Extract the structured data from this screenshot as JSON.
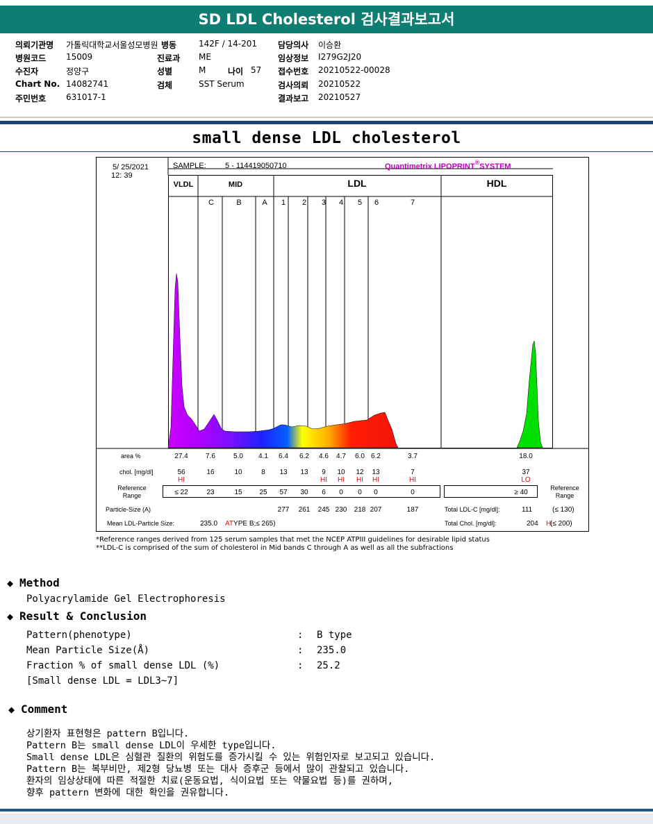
{
  "report_title": "SD LDL Cholesterol 검사결과보고서",
  "patient": {
    "institution_label": "의뢰기관명",
    "institution": "가톨릭대학교서울성모병원",
    "ward_label": "병동",
    "ward": "142F / 14-201",
    "doctor_label": "담당의사",
    "doctor": "이승환",
    "hospital_code_label": "병원코드",
    "hospital_code": "15009",
    "dept_label": "진료과",
    "dept": "ME",
    "clinical_label": "임상정보",
    "clinical": "I279G2J20",
    "patient_label": "수진자",
    "patient_name": "정양구",
    "sex_label": "성별",
    "sex": "M",
    "age_label": "나이",
    "age": "57",
    "reception_label": "접수번호",
    "reception": "20210522-00028",
    "chart_label": "Chart No.",
    "chart_no": "14082741",
    "specimen_label": "검체",
    "specimen": "SST Serum",
    "request_label": "검사의뢰",
    "request_date": "20210522",
    "id_label": "주민번호",
    "id_no": "631017-1",
    "report_label": "결과보고",
    "report_date": "20210527"
  },
  "section_title": "small dense LDL cholesterol",
  "chart_data": {
    "type": "area",
    "date": "5/ 25/2021",
    "time": "12: 39",
    "sample_label": "SAMPLE:",
    "sample_id": "5 - 114419050710",
    "brand": "Quantimetrix LIPOPRINT",
    "brand_suffix": "SYSTEM",
    "brand_mark": "®",
    "groups": [
      "VLDL",
      "MID",
      "LDL",
      "HDL"
    ],
    "bands": [
      "C",
      "B",
      "A",
      "1",
      "2",
      "3",
      "4",
      "5",
      "6",
      "7"
    ],
    "area_label": "area %",
    "area": [
      "27.4",
      "7.6",
      "5.0",
      "4.1",
      "6.4",
      "6.2",
      "4.6",
      "4.7",
      "6.0",
      "6.2",
      "3.7",
      "18.0"
    ],
    "chol_label": "chol. [mg/dl]",
    "chol": [
      "56",
      "16",
      "10",
      "8",
      "13",
      "13",
      "9",
      "10",
      "12",
      "13",
      "7",
      "37"
    ],
    "flags": [
      "HI",
      "",
      "",
      "",
      "",
      "",
      "HI",
      "HI",
      "HI",
      "HI",
      "HI",
      "LO"
    ],
    "ref_label": [
      "Reference",
      "Range"
    ],
    "ref_right_label": [
      "Reference",
      "Range"
    ],
    "ref": [
      "≤ 22",
      "23",
      "15",
      "25",
      "57",
      "30",
      "6",
      "0",
      "0",
      "0",
      "0",
      "≥ 40"
    ],
    "size_label": "Particle-Size (A)",
    "sizes": [
      "277",
      "261",
      "245",
      "230",
      "218",
      "207",
      "187"
    ],
    "mean_label": "Mean LDL-Particle Size:",
    "mean_value": "235.0",
    "type_prefix": "AT",
    "type_value": "YPE B",
    "type_ref": ";≤ 265)",
    "total_ldl_label": "Total LDL-C [mg/dl]:",
    "total_ldl": "111",
    "total_ldl_ref": "(≤ 130)",
    "total_chol_label": "Total Chol. [mg/dl]:",
    "total_chol": "204",
    "total_chol_flag": "H",
    "total_chol_ref": "(≤ 200)"
  },
  "footnotes": [
    "*Reference ranges derived from 125 serum samples that met the NCEP ATPIII guidelines for desirable lipid status",
    "**LDL-C is comprised of the sum of cholesterol in Mid bands C through A as well as all the subfractions"
  ],
  "method": {
    "heading": "Method",
    "text": "Polyacrylamide Gel Electrophoresis"
  },
  "result": {
    "heading": "Result & Conclusion",
    "rows": [
      {
        "label": "Pattern(phenotype)",
        "value": "B type"
      },
      {
        "label": "Mean Particle Size(Å)",
        "value": "235.0"
      },
      {
        "label": "Fraction % of small dense LDL (%)",
        "value": "25.2"
      }
    ],
    "note": "[Small dense LDL = LDL3~7]"
  },
  "comment": {
    "heading": "Comment",
    "lines": [
      "상기환자 표현형은 pattern B입니다.",
      "Pattern B는 small dense LDL이 우세한 type입니다.",
      "Small dense LDL은 심혈관 질환의 위험도를 증가시킬 수 있는 위험인자로 보고되고 있습니다.",
      "Pattern B는 복부비만, 제2형 당뇨병 또는 대사 증후군 등에서 많이 관찰되고 있습니다.",
      "환자의 임상상태에 따른 적절한 치료(운동요법, 식이요법 또는 약물요법 등)를 권하며,",
      "향후 pattern 변화에 대한 확인을 권유합니다."
    ]
  },
  "colors": {
    "header": "#0e7d72",
    "rule": "#1c3f77",
    "flag": "#d21010",
    "brand": "#c000c0"
  }
}
